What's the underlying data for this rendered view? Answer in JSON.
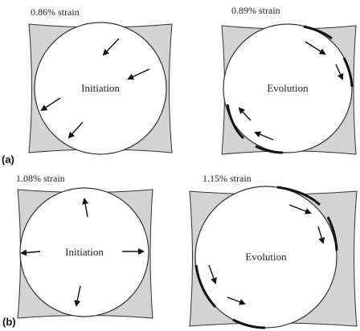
{
  "panels": [
    {
      "tag": "(a)",
      "left": {
        "caption": "0.86% strain",
        "label": "Initiation"
      },
      "right": {
        "caption": "0.89% strain",
        "label": "Evolution"
      }
    },
    {
      "tag": "(b)",
      "left": {
        "caption": "1.08% strain",
        "label": "Initiation"
      },
      "right": {
        "caption": "1.15% strain",
        "label": "Evolution"
      }
    }
  ]
}
